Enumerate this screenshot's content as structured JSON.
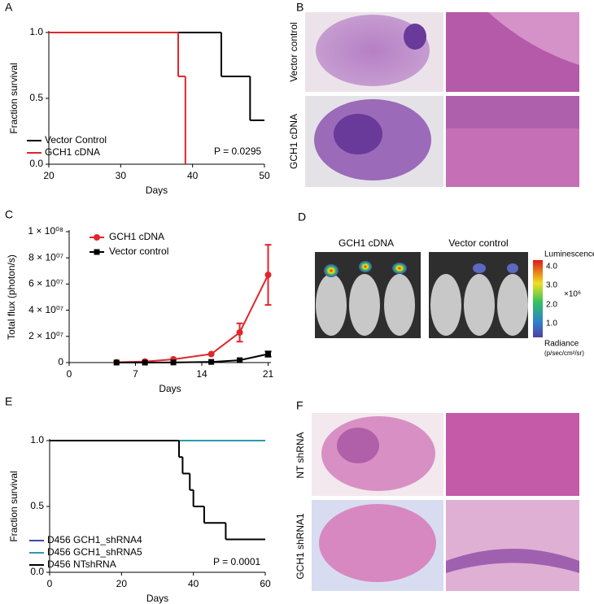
{
  "panel_labels": [
    "A",
    "B",
    "C",
    "D",
    "E",
    "F"
  ],
  "chart_data": [
    {
      "type": "step",
      "x_label": "Days",
      "y_label": "Fraction survival",
      "xlim": [
        20,
        50
      ],
      "xticks": [
        20,
        30,
        40,
        50
      ],
      "ylim": [
        0,
        1
      ],
      "yticks": [
        {
          "value": 0,
          "label": "0.0"
        },
        {
          "value": 0.5,
          "label": "0.5"
        },
        {
          "value": 1,
          "label": "1.0"
        }
      ],
      "legend": "lower left",
      "annotation": "P = 0.0295",
      "series": [
        {
          "name": "Vector Control",
          "color": "#000000",
          "x": [
            20,
            44,
            48,
            50
          ],
          "values": [
            1,
            0.667,
            0.333,
            0.333
          ]
        },
        {
          "name": "GCH1 cDNA",
          "color": "#e0262b",
          "x": [
            20,
            38,
            39
          ],
          "values": [
            1,
            0.667,
            0
          ]
        }
      ]
    },
    {
      "type": "line",
      "x_label": "Days",
      "y_label": "Total flux (photon/s)",
      "xlim": [
        0,
        21.3
      ],
      "xticks": [
        0,
        7,
        14,
        21
      ],
      "ylim": [
        0,
        100000000
      ],
      "yticks": [
        0,
        {
          "value": 20000000,
          "label": "2 × 10⁰⁷"
        },
        {
          "value": 40000000,
          "label": "4 × 10⁰⁷"
        },
        {
          "value": 60000000,
          "label": "6 × 10⁰⁷"
        },
        {
          "value": 80000000,
          "label": "8 × 10⁰⁷"
        },
        {
          "value": 100000000,
          "label": "1 × 10⁰⁸"
        }
      ],
      "legend": "upper left",
      "series": [
        {
          "name": "GCH1 cDNA",
          "color": "#e0262b",
          "marker": "circle",
          "x": [
            5,
            8,
            11,
            15,
            18,
            21
          ],
          "values": [
            200000,
            800000,
            2500000,
            6500000,
            23000000,
            67000000
          ],
          "errors": [
            0,
            0,
            0,
            0,
            7000000,
            23000000
          ]
        },
        {
          "name": "Vector control",
          "color": "#000000",
          "marker": "square",
          "x": [
            5,
            8,
            11,
            15,
            18,
            21
          ],
          "values": [
            0,
            0,
            100000,
            500000,
            1800000,
            6500000
          ],
          "errors": [
            0,
            0,
            0,
            0,
            0,
            2000000
          ]
        }
      ]
    },
    {
      "type": "step",
      "x_label": "Days",
      "y_label": "Fraction survival",
      "xlim": [
        0,
        60
      ],
      "xticks": [
        0,
        20,
        40,
        60
      ],
      "ylim": [
        0,
        1
      ],
      "yticks": [
        {
          "value": 0,
          "label": "0.0"
        },
        {
          "value": 0.5,
          "label": "0.5"
        },
        {
          "value": 1,
          "label": "1.0"
        }
      ],
      "legend": "lower left",
      "annotation": "P = 0.0001",
      "series": [
        {
          "name": "D456 GCH1_shRNA4",
          "color": "#3a4fa0",
          "x": [
            0,
            60
          ],
          "values": [
            1,
            1
          ]
        },
        {
          "name": "D456 GCH1_shRNA5",
          "color": "#2a9bb0",
          "x": [
            0,
            60
          ],
          "values": [
            1,
            1
          ]
        },
        {
          "name": "D456 NTshRNA",
          "color": "#000000",
          "x": [
            0,
            36,
            37,
            39,
            40,
            43,
            49,
            60
          ],
          "values": [
            1,
            0.875,
            0.75,
            0.625,
            0.5,
            0.375,
            0.25,
            0.25
          ]
        }
      ]
    }
  ],
  "panel_b": {
    "rows": [
      "Vector control",
      "GCH1 cDNA"
    ]
  },
  "panel_d": {
    "groups": [
      "GCH1 cDNA",
      "Vector control"
    ],
    "colorbar": {
      "title": "Luminescence",
      "ticks": [
        "4.0",
        "3.0",
        "2.0",
        "1.0"
      ],
      "scale": "×10⁶",
      "unit_title": "Radiance",
      "unit": "(p/sec/cm²/sr)"
    }
  },
  "panel_f": {
    "rows": [
      "NT shRNA",
      "GCH1 shRNA1"
    ]
  }
}
